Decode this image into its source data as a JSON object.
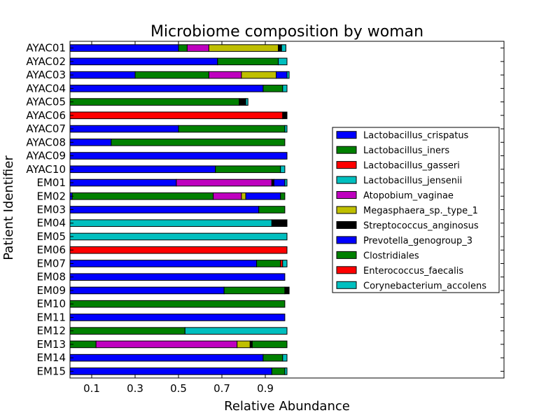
{
  "chart_data": {
    "type": "bar",
    "orientation": "horizontal",
    "stacked": true,
    "title": "Microbiome composition by woman",
    "xlabel": "Relative Abundance",
    "ylabel": "Patient Identifier",
    "xlim": [
      0.0,
      2.0
    ],
    "xticks": [
      0.1,
      0.3,
      0.5,
      0.7,
      0.9
    ],
    "xtick_labels": [
      "0.1",
      "0.3",
      "0.5",
      "0.7",
      "0.9"
    ],
    "grid": false,
    "legend_position": "right",
    "categories": [
      "AYAC01",
      "AYAC02",
      "AYAC03",
      "AYAC04",
      "AYAC05",
      "AYAC06",
      "AYAC07",
      "AYAC08",
      "AYAC09",
      "AYAC10",
      "EM01",
      "EM02",
      "EM03",
      "EM04",
      "EM05",
      "EM06",
      "EM07",
      "EM08",
      "EM09",
      "EM10",
      "EM11",
      "EM12",
      "EM13",
      "EM14",
      "EM15"
    ],
    "series": [
      {
        "name": "Lactobacillus_crispatus",
        "color": "#0000ff",
        "values": [
          0.5,
          0.68,
          0.3,
          0.89,
          0,
          0,
          0.5,
          0.19,
          1.0,
          0.67,
          0.49,
          0.01,
          0.87,
          0,
          0,
          0,
          0.86,
          0.99,
          0.71,
          0,
          0.99,
          0,
          0,
          0.89,
          0.93
        ]
      },
      {
        "name": "Lactobacillus_iners",
        "color": "#008000",
        "values": [
          0.04,
          0.28,
          0.34,
          0.09,
          0.78,
          0,
          0.49,
          0.8,
          0,
          0.3,
          0,
          0.65,
          0.12,
          0,
          0,
          0,
          0.11,
          0,
          0.28,
          0.99,
          0,
          0.53,
          0.12,
          0.09,
          0.06
        ]
      },
      {
        "name": "Lactobacillus_gasseri",
        "color": "#ff0000",
        "values": [
          0,
          0,
          0,
          0,
          0,
          0.98,
          0,
          0,
          0,
          0,
          0,
          0,
          0,
          0,
          0,
          1.0,
          0.01,
          0,
          0,
          0,
          0,
          0,
          0,
          0,
          0
        ]
      },
      {
        "name": "Lactobacillus_jensenii",
        "color": "#00bfbf",
        "values": [
          0,
          0.04,
          0,
          0,
          0,
          0,
          0,
          0,
          0,
          0,
          0,
          0,
          0,
          0.93,
          1.0,
          0,
          0,
          0,
          0,
          0,
          0,
          0.47,
          0,
          0,
          0
        ]
      },
      {
        "name": "Atopobium_vaginae",
        "color": "#bf00bf",
        "values": [
          0.1,
          0,
          0.15,
          0,
          0,
          0,
          0,
          0,
          0,
          0,
          0.44,
          0.13,
          0,
          0,
          0,
          0,
          0,
          0,
          0,
          0,
          0,
          0,
          0.65,
          0,
          0
        ]
      },
      {
        "name": "Megasphaera_sp._type_1",
        "color": "#bfbf00",
        "values": [
          0.32,
          0,
          0.16,
          0,
          0,
          0,
          0,
          0,
          0,
          0,
          0,
          0.02,
          0,
          0,
          0,
          0,
          0,
          0,
          0,
          0,
          0,
          0,
          0.06,
          0,
          0
        ]
      },
      {
        "name": "Streptococcus_anginosus",
        "color": "#000000",
        "values": [
          0.015,
          0,
          0,
          0,
          0.03,
          0.02,
          0,
          0,
          0,
          0,
          0.01,
          0,
          0,
          0.07,
          0,
          0,
          0,
          0,
          0.02,
          0,
          0,
          0,
          0.01,
          0,
          0
        ]
      },
      {
        "name": "Prevotella_genogroup_3",
        "color": "#0000ff",
        "values": [
          0,
          0,
          0.05,
          0,
          0,
          0,
          0,
          0,
          0,
          0,
          0.05,
          0.16,
          0,
          0,
          0,
          0,
          0,
          0,
          0,
          0,
          0,
          0,
          0,
          0,
          0
        ]
      },
      {
        "name": "Clostridiales",
        "color": "#008000",
        "values": [
          0,
          0,
          0,
          0,
          0,
          0,
          0,
          0,
          0,
          0,
          0,
          0.02,
          0,
          0,
          0,
          0,
          0,
          0,
          0,
          0,
          0,
          0,
          0.16,
          0,
          0
        ]
      },
      {
        "name": "Enterococcus_faecalis",
        "color": "#ff0000",
        "values": [
          0,
          0,
          0,
          0,
          0,
          0,
          0,
          0,
          0,
          0,
          0,
          0,
          0,
          0,
          0,
          0,
          0,
          0,
          0,
          0,
          0,
          0,
          0,
          0,
          0
        ]
      },
      {
        "name": "Corynebacterium_accolens",
        "color": "#00bfbf",
        "values": [
          0.02,
          0,
          0.01,
          0.02,
          0.01,
          0,
          0.01,
          0,
          0,
          0.02,
          0.01,
          0,
          0,
          0,
          0,
          0,
          0.02,
          0,
          0,
          0,
          0,
          0,
          0,
          0.02,
          0.01
        ]
      }
    ]
  }
}
